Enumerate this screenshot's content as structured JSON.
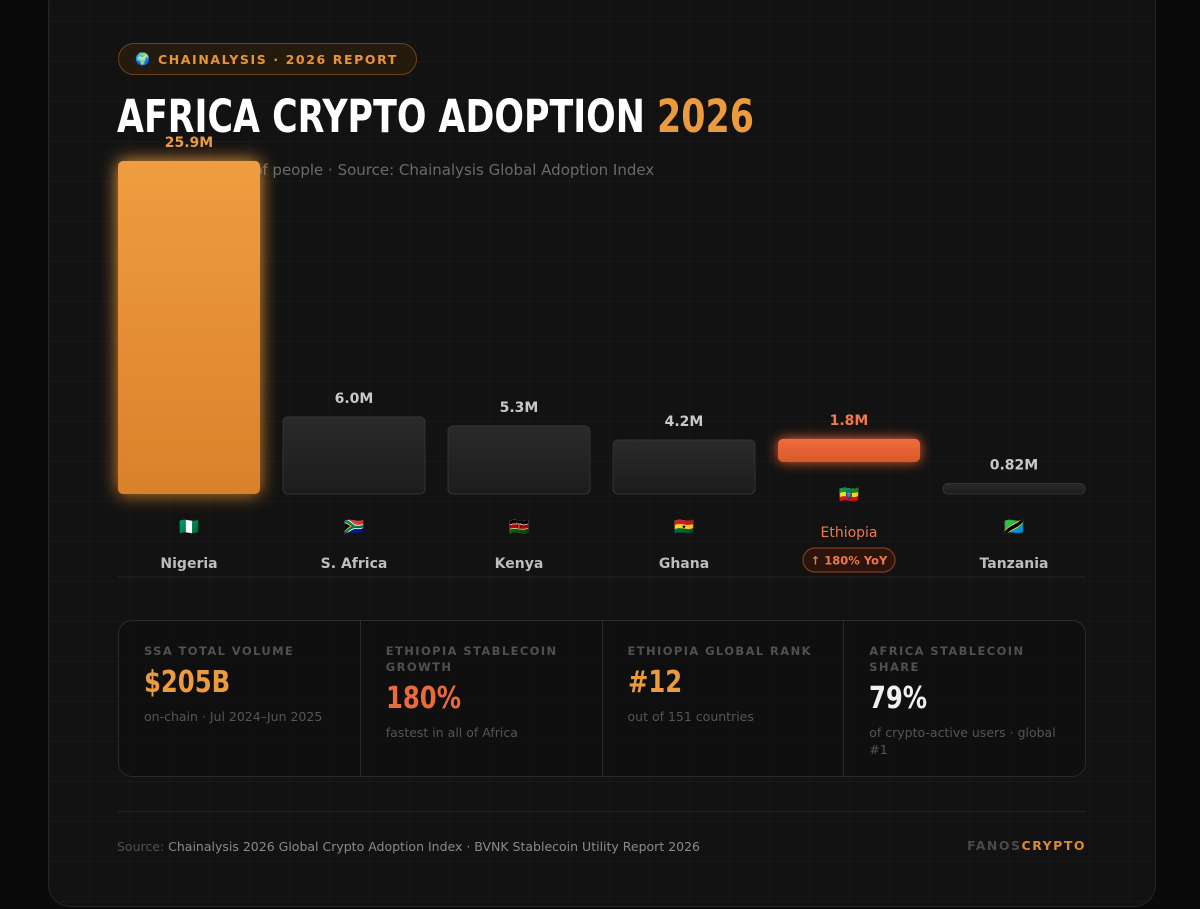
{
  "badge": {
    "icon": "globe-icon",
    "text": "CHAINALYSIS · 2026 REPORT"
  },
  "title": {
    "main": "AFRICA CRYPTO ADOPTION",
    "year": "2026"
  },
  "subtitle": "ountry — millions of people · Source: Chainalysis Global Adoption Index",
  "chart_data": {
    "type": "bar",
    "categories": [
      "Nigeria",
      "S. Africa",
      "Kenya",
      "Ghana",
      "Ethiopia",
      "Tanzania"
    ],
    "values": [
      25.9,
      6.0,
      5.3,
      4.2,
      1.8,
      0.82
    ],
    "value_labels": [
      "25.9M",
      "6.0M",
      "5.3M",
      "4.2M",
      "1.8M",
      "0.82M"
    ],
    "flags": [
      "🇳🇬",
      "🇿🇦",
      "🇰🇪",
      "🇬🇭",
      "🇪🇹",
      "🇹🇿"
    ],
    "highlight": {
      "category": "Ethiopia",
      "badge": "↑ 180% YoY"
    },
    "ylim": [
      0,
      25.9
    ],
    "grid": false,
    "colors": {
      "top": "#ec9a3e",
      "highlight": "#e8663a",
      "other": "#262626"
    }
  },
  "stats": [
    {
      "label": "SSA TOTAL VOLUME",
      "value": "$205B",
      "note": "on-chain · Jul 2024–Jun 2025",
      "color": "orange"
    },
    {
      "label": "ETHIOPIA STABLECOIN GROWTH",
      "value": "180%",
      "note": "fastest in all of Africa",
      "color": "red"
    },
    {
      "label": "ETHIOPIA GLOBAL RANK",
      "value": "#12",
      "note": "out of 151 countries",
      "color": "orange"
    },
    {
      "label": "AFRICA STABLECOIN SHARE",
      "value": "79%",
      "note": "of crypto-active users · global #1",
      "color": "white"
    }
  ],
  "footer": {
    "source_prefix": "Source:",
    "source_text": "Chainalysis 2026 Global Crypto Adoption Index · BVNK Stablecoin Utility Report 2026",
    "brand_a": "FANOS",
    "brand_b": "CRYPTO"
  }
}
